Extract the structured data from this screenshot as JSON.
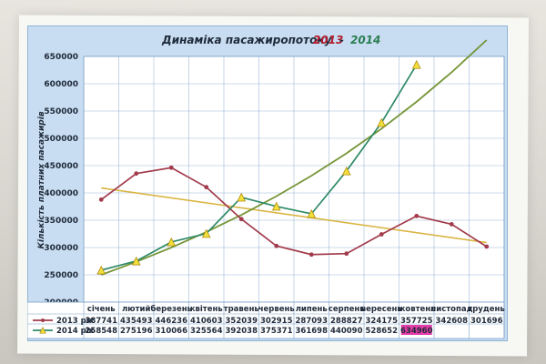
{
  "chart_data": {
    "type": "line",
    "title": {
      "prefix": "Динаміка пасажиропотоку",
      "year_a": "2013",
      "dash": "-",
      "year_b": "2014"
    },
    "ylabel": "Кількість платних пасажирів",
    "ylim": [
      200000,
      650000
    ],
    "yticks": [
      200000,
      250000,
      300000,
      350000,
      400000,
      450000,
      500000,
      550000,
      600000,
      650000
    ],
    "categories": [
      "січень",
      "лютий",
      "березень",
      "квітень",
      "травень",
      "червень",
      "липень",
      "серпень",
      "вересень",
      "жовтень",
      "листопад",
      "грудень"
    ],
    "series": [
      {
        "name": "2013 рік",
        "color": "#a23b4b",
        "marker": "x",
        "values": [
          387741,
          435493,
          446236,
          410603,
          352039,
          302915,
          287093,
          288827,
          324175,
          357725,
          342608,
          301696
        ],
        "table_values": [
          "387741",
          "435493",
          "446236",
          "410603",
          "352039",
          "302915",
          "287093",
          "288827",
          "324175",
          "357725",
          "342608",
          "301696"
        ]
      },
      {
        "name": "2014 рік",
        "color": "#2f8a66",
        "marker": "triangle",
        "values": [
          258548,
          275196,
          310066,
          325564,
          392038,
          375371,
          361698,
          440090,
          528652,
          634960,
          null,
          null
        ],
        "table_values": [
          "258548",
          "275196",
          "310066",
          "325564",
          "392038",
          "375371",
          "361698",
          "440090",
          "528652",
          "634960",
          "",
          ""
        ],
        "highlight_index": 9,
        "highlight_color": "#e01a9a"
      }
    ],
    "trendlines": [
      {
        "for": "2013 рік",
        "kind": "linear",
        "color": "#d9b23a",
        "from": 409000,
        "to": 309000
      },
      {
        "for": "2014 рік",
        "kind": "exponential",
        "color": "#6f8f2b",
        "from": 250000,
        "to": 680000
      }
    ],
    "grid": true,
    "legend": "bottom-left (data table)"
  }
}
